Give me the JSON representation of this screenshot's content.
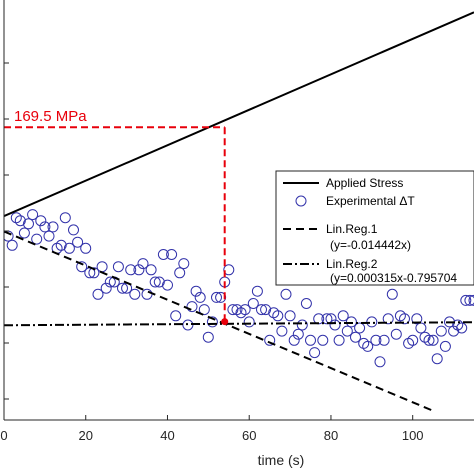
{
  "chart_data": {
    "type": "scatter",
    "xlabel": "time (s)",
    "xlim": [
      0,
      115
    ],
    "ylim": [
      -0.55,
      0.82
    ],
    "x_ticks": [
      0,
      20,
      40,
      60,
      80,
      100
    ],
    "x_tick_labels": [
      "0",
      "20",
      "40",
      "60",
      "80",
      "100"
    ],
    "grid": false,
    "legend_position": "right",
    "colors": {
      "applied_stress": "#000000",
      "experimental": "#3333aa",
      "annotation": "#e8000b"
    },
    "series": [
      {
        "name": "Applied Stress",
        "kind": "line",
        "style": "solid",
        "x": [
          0,
          115
        ],
        "y": [
          0.115,
          0.78
        ]
      },
      {
        "name": "Experimental ΔT",
        "kind": "scatter",
        "marker": "open-circle",
        "x": [
          1,
          2,
          3,
          4,
          5,
          6,
          7,
          8,
          9,
          10,
          11,
          12,
          13,
          14,
          15,
          16,
          17,
          18,
          19,
          20,
          21,
          22,
          23,
          24,
          25,
          26,
          27,
          28,
          29,
          30,
          31,
          32,
          33,
          34,
          35,
          36,
          37,
          38,
          39,
          40,
          41,
          42,
          43,
          44,
          45,
          46,
          47,
          48,
          49,
          50,
          51,
          52,
          53,
          54,
          55,
          56,
          57,
          58,
          59,
          60,
          61,
          62,
          63,
          64,
          65,
          66,
          67,
          68,
          69,
          70,
          71,
          72,
          73,
          74,
          75,
          76,
          77,
          78,
          79,
          80,
          81,
          82,
          83,
          84,
          85,
          86,
          87,
          88,
          89,
          90,
          91,
          92,
          93,
          94,
          95,
          96,
          97,
          98,
          99,
          100,
          101,
          102,
          103,
          104,
          105,
          106,
          107,
          108,
          109,
          110,
          111,
          112,
          113,
          114,
          115
        ],
        "y": [
          0.05,
          0.02,
          0.11,
          0.1,
          0.06,
          0.09,
          0.12,
          0.04,
          0.1,
          0.08,
          0.05,
          0.08,
          0.01,
          0.02,
          0.11,
          0.01,
          0.07,
          0.03,
          -0.05,
          0.01,
          -0.07,
          -0.07,
          -0.14,
          -0.05,
          -0.12,
          -0.1,
          -0.1,
          -0.05,
          -0.12,
          -0.12,
          -0.06,
          -0.14,
          -0.06,
          -0.04,
          -0.14,
          -0.06,
          -0.1,
          -0.1,
          -0.01,
          -0.11,
          -0.01,
          -0.21,
          -0.07,
          -0.04,
          -0.24,
          -0.18,
          -0.13,
          -0.15,
          -0.19,
          -0.28,
          -0.23,
          -0.15,
          -0.15,
          -0.1,
          -0.06,
          -0.19,
          -0.19,
          -0.2,
          -0.19,
          -0.23,
          -0.17,
          -0.13,
          -0.19,
          -0.19,
          -0.29,
          -0.2,
          -0.21,
          -0.26,
          -0.14,
          -0.21,
          -0.29,
          -0.27,
          -0.24,
          -0.17,
          -0.29,
          -0.33,
          -0.22,
          -0.29,
          -0.22,
          -0.22,
          -0.24,
          -0.29,
          -0.21,
          -0.26,
          -0.23,
          -0.28,
          -0.25,
          -0.3,
          -0.31,
          -0.23,
          -0.29,
          -0.36,
          -0.29,
          -0.22,
          -0.14,
          -0.27,
          -0.21,
          -0.22,
          -0.3,
          -0.29,
          -0.22,
          -0.25,
          -0.28,
          -0.29,
          -0.29,
          -0.35,
          -0.26,
          -0.31,
          -0.23,
          -0.26,
          -0.24,
          -0.25,
          -0.16,
          -0.16,
          -0.16
        ]
      },
      {
        "name": "Lin.Reg.1",
        "legend_label_line2": "(y=-0.014442x)",
        "kind": "line",
        "style": "dashed",
        "x": [
          0,
          105
        ],
        "y": [
          0.065,
          -0.52
        ]
      },
      {
        "name": "Lin.Reg.2",
        "legend_label_line2": "(y=0.000315x-0.795704",
        "kind": "line",
        "style": "dashdot",
        "x": [
          0,
          115
        ],
        "y": [
          -0.241,
          -0.231
        ]
      }
    ],
    "annotation": {
      "text": "169.5 MPa",
      "x": 54,
      "stress_y": 0.405,
      "intersection_y": -0.229
    }
  }
}
